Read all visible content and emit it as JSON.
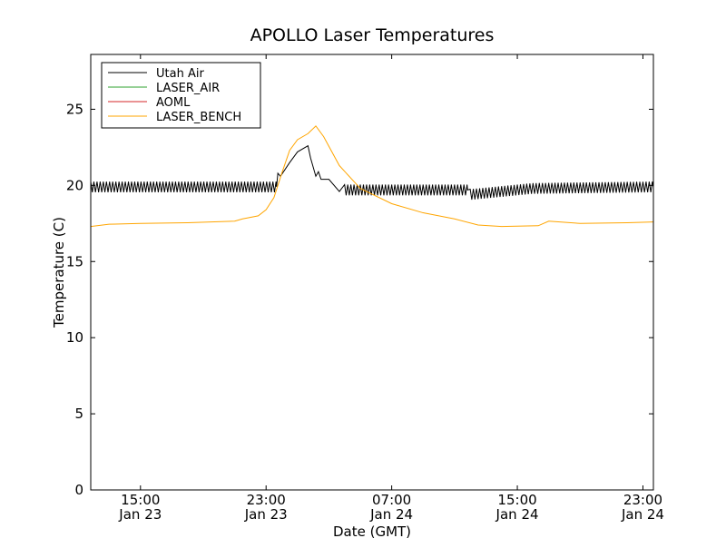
{
  "chart_data": {
    "type": "line",
    "title": "APOLLO Laser Temperatures",
    "xlabel": "Date (GMT)",
    "ylabel": "Temperature (C)",
    "x_unit": "datetime",
    "xlim": [
      "2015-01-23T11:50",
      "2015-01-24T23:40"
    ],
    "ylim": [
      0,
      28.6
    ],
    "grid": false,
    "legend_position": "top-left",
    "x_ticks": [
      {
        "time": "2015-01-23T15:00",
        "label_time": "15:00",
        "label_date": "Jan 23"
      },
      {
        "time": "2015-01-23T23:00",
        "label_time": "23:00",
        "label_date": "Jan 23"
      },
      {
        "time": "2015-01-24T07:00",
        "label_time": "07:00",
        "label_date": "Jan 24"
      },
      {
        "time": "2015-01-24T15:00",
        "label_time": "15:00",
        "label_date": "Jan 24"
      },
      {
        "time": "2015-01-24T23:00",
        "label_time": "23:00",
        "label_date": "Jan 24"
      }
    ],
    "y_ticks": [
      0,
      5,
      10,
      15,
      20,
      25
    ],
    "series": [
      {
        "name": "Utah Air",
        "color": "#000000",
        "points": [
          [
            "2015-01-23T11:50",
            19.9
          ],
          [
            "2015-01-23T23:40",
            19.9
          ],
          [
            "2015-01-23T23:45",
            20.8
          ],
          [
            "2015-01-23T23:55",
            20.6
          ],
          [
            "2015-01-24T00:30",
            21.5
          ],
          [
            "2015-01-24T01:00",
            22.2
          ],
          [
            "2015-01-24T01:40",
            22.6
          ],
          [
            "2015-01-24T01:50",
            21.8
          ],
          [
            "2015-01-24T02:10",
            20.6
          ],
          [
            "2015-01-24T02:20",
            20.9
          ],
          [
            "2015-01-24T02:30",
            20.4
          ],
          [
            "2015-01-24T03:00",
            20.4
          ],
          [
            "2015-01-24T03:40",
            19.6
          ],
          [
            "2015-01-24T04:00",
            19.7
          ],
          [
            "2015-01-24T11:50",
            19.7
          ],
          [
            "2015-01-24T12:00",
            19.4
          ],
          [
            "2015-01-24T16:00",
            19.8
          ],
          [
            "2015-01-24T23:40",
            19.9
          ]
        ]
      },
      {
        "name": "LASER_AIR",
        "color": "#2ca02c",
        "points": []
      },
      {
        "name": "AOML",
        "color": "#d62728",
        "points": []
      },
      {
        "name": "LASER_BENCH",
        "color": "#ffa500",
        "points": [
          [
            "2015-01-23T11:50",
            17.3
          ],
          [
            "2015-01-23T13:00",
            17.45
          ],
          [
            "2015-01-23T15:00",
            17.5
          ],
          [
            "2015-01-23T18:00",
            17.55
          ],
          [
            "2015-01-23T21:00",
            17.65
          ],
          [
            "2015-01-23T21:30",
            17.8
          ],
          [
            "2015-01-23T22:30",
            18.0
          ],
          [
            "2015-01-23T23:00",
            18.4
          ],
          [
            "2015-01-23T23:30",
            19.2
          ],
          [
            "2015-01-24T00:00",
            20.8
          ],
          [
            "2015-01-24T00:30",
            22.3
          ],
          [
            "2015-01-24T01:00",
            23.0
          ],
          [
            "2015-01-24T01:40",
            23.4
          ],
          [
            "2015-01-24T02:10",
            23.9
          ],
          [
            "2015-01-24T02:40",
            23.2
          ],
          [
            "2015-01-24T03:40",
            21.3
          ],
          [
            "2015-01-24T05:00",
            19.8
          ],
          [
            "2015-01-24T07:00",
            18.8
          ],
          [
            "2015-01-24T09:00",
            18.2
          ],
          [
            "2015-01-24T11:00",
            17.8
          ],
          [
            "2015-01-24T12:30",
            17.4
          ],
          [
            "2015-01-24T14:00",
            17.3
          ],
          [
            "2015-01-24T16:20",
            17.35
          ],
          [
            "2015-01-24T17:00",
            17.65
          ],
          [
            "2015-01-24T19:00",
            17.5
          ],
          [
            "2015-01-24T22:00",
            17.55
          ],
          [
            "2015-01-24T23:40",
            17.6
          ]
        ]
      }
    ]
  }
}
